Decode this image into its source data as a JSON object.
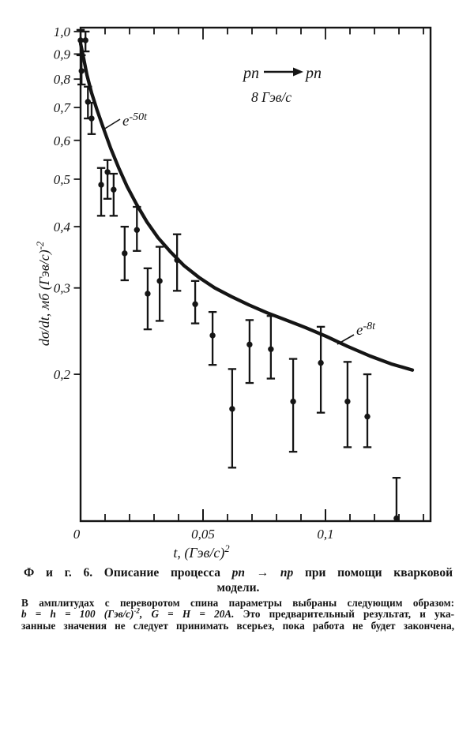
{
  "colors": {
    "ink": "#151515",
    "paper": "#ffffff"
  },
  "figure": {
    "axes": {
      "y_label_main": "dσ/dt, мб (Гэв/с)",
      "y_label_exp": "-2",
      "x_label_main": "t, (Гэв/с)",
      "x_label_exp": "2",
      "y_ticks": [
        {
          "value": 1.0,
          "label": "1,0"
        },
        {
          "value": 0.9,
          "label": "0,9"
        },
        {
          "value": 0.8,
          "label": "0,8"
        },
        {
          "value": 0.7,
          "label": "0,7"
        },
        {
          "value": 0.6,
          "label": "0,6"
        },
        {
          "value": 0.5,
          "label": "0,5"
        },
        {
          "value": 0.4,
          "label": "0,4"
        },
        {
          "value": 0.3,
          "label": "0,3"
        },
        {
          "value": 0.2,
          "label": "0,2"
        }
      ],
      "x_ticks": [
        {
          "value": 0,
          "label": "0"
        },
        {
          "value": 0.05,
          "label": "0,05"
        },
        {
          "value": 0.1,
          "label": "0,1"
        }
      ]
    },
    "annotations": {
      "reaction_left": "pn",
      "reaction_right": "pn",
      "beam_momentum": "8 Гэв/с",
      "steep_slope_base": "e",
      "steep_slope_exp": "-50t",
      "shallow_slope_base": "e",
      "shallow_slope_exp": "-8t"
    },
    "caption": {
      "prefix": "Ф и г. 6.",
      "text_before": "Описание процесса",
      "process": "pn → np",
      "text_after": "при помощи кварковой",
      "line2": "модели."
    },
    "note": {
      "line1": "В амплитудах с переворотом спина параметры выбраны следующим образом:",
      "line2_math_pre": "b = h = 100 (Гэв/с)",
      "line2_math_sup": "-2",
      "line2_math_post": ", G = H = 20A.",
      "line2_text": "Это предварительный результат, и ука-",
      "line3": "занные значения не следует принимать всерьез, пока работа не будет закончена,"
    }
  },
  "chart_data": {
    "type": "scatter",
    "title": "",
    "xlabel": "t, (Гэв/с)^2",
    "ylabel": "dσ/dt, мб (Гэв/с)^-2",
    "y_scale": "log",
    "xlim": [
      0,
      0.142
    ],
    "ylim": [
      0.1,
      1.05
    ],
    "grid": false,
    "x_minor_step": 0.01,
    "annotations": [
      "pn → pn",
      "8 Гэв/с",
      "e^-50t",
      "e^-8t"
    ],
    "points": [
      {
        "t": 0.0,
        "v": 0.96,
        "lo": 0.895,
        "hi": 1.008
      },
      {
        "t": 0.002,
        "v": 0.96,
        "lo": 0.911,
        "hi": 1.0
      },
      {
        "t": 0.0004,
        "v": 0.831,
        "lo": 0.78,
        "hi": 0.895
      },
      {
        "t": 0.003,
        "v": 0.719,
        "lo": 0.665,
        "hi": 0.772
      },
      {
        "t": 0.0045,
        "v": 0.665,
        "lo": 0.618,
        "hi": 0.716
      },
      {
        "t": 0.0084,
        "v": 0.487,
        "lo": 0.421,
        "hi": 0.527
      },
      {
        "t": 0.011,
        "v": 0.517,
        "lo": 0.456,
        "hi": 0.547
      },
      {
        "t": 0.0135,
        "v": 0.476,
        "lo": 0.421,
        "hi": 0.513
      },
      {
        "t": 0.018,
        "v": 0.353,
        "lo": 0.311,
        "hi": 0.4
      },
      {
        "t": 0.023,
        "v": 0.394,
        "lo": 0.357,
        "hi": 0.439
      },
      {
        "t": 0.0274,
        "v": 0.292,
        "lo": 0.247,
        "hi": 0.329
      },
      {
        "t": 0.0323,
        "v": 0.31,
        "lo": 0.257,
        "hi": 0.364
      },
      {
        "t": 0.0394,
        "v": 0.342,
        "lo": 0.296,
        "hi": 0.386
      },
      {
        "t": 0.0468,
        "v": 0.278,
        "lo": 0.254,
        "hi": 0.31
      },
      {
        "t": 0.0539,
        "v": 0.24,
        "lo": 0.209,
        "hi": 0.268
      },
      {
        "t": 0.0619,
        "v": 0.17,
        "lo": 0.129,
        "hi": 0.205
      },
      {
        "t": 0.069,
        "v": 0.23,
        "lo": 0.192,
        "hi": 0.258
      },
      {
        "t": 0.0777,
        "v": 0.225,
        "lo": 0.196,
        "hi": 0.263
      },
      {
        "t": 0.0868,
        "v": 0.176,
        "lo": 0.139,
        "hi": 0.215
      },
      {
        "t": 0.0981,
        "v": 0.211,
        "lo": 0.167,
        "hi": 0.25
      },
      {
        "t": 0.109,
        "v": 0.176,
        "lo": 0.142,
        "hi": 0.212
      },
      {
        "t": 0.1171,
        "v": 0.164,
        "lo": 0.142,
        "hi": 0.2
      },
      {
        "t": 0.129,
        "v": 0.101,
        "lo": 0.101,
        "hi": 0.123,
        "partial": true
      }
    ],
    "curve": [
      [
        0,
        0.946
      ],
      [
        0.001,
        0.895
      ],
      [
        0.0026,
        0.815
      ],
      [
        0.0045,
        0.749
      ],
      [
        0.0068,
        0.69
      ],
      [
        0.0094,
        0.634
      ],
      [
        0.0123,
        0.578
      ],
      [
        0.0155,
        0.528
      ],
      [
        0.019,
        0.483
      ],
      [
        0.0229,
        0.444
      ],
      [
        0.0271,
        0.409
      ],
      [
        0.0316,
        0.38
      ],
      [
        0.0368,
        0.355
      ],
      [
        0.0423,
        0.333
      ],
      [
        0.0484,
        0.315
      ],
      [
        0.0548,
        0.3
      ],
      [
        0.0616,
        0.288
      ],
      [
        0.0687,
        0.277
      ],
      [
        0.0761,
        0.267
      ],
      [
        0.0839,
        0.258
      ],
      [
        0.0919,
        0.249
      ],
      [
        0.1003,
        0.239
      ],
      [
        0.109,
        0.228
      ],
      [
        0.1181,
        0.218
      ],
      [
        0.1268,
        0.21
      ],
      [
        0.1355,
        0.204
      ]
    ]
  }
}
